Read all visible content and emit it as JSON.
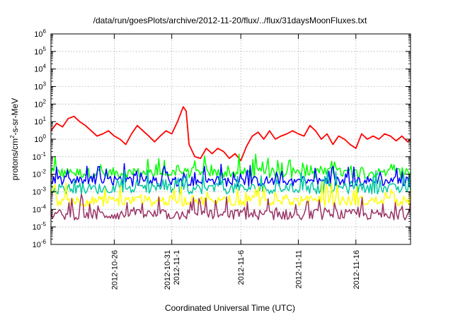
{
  "chart_data": {
    "type": "line",
    "title": "/data/run/goesPlots/archive/2012-11-20/flux/../flux/31daysMoonFluxes.txt",
    "xlabel": "Coordinated Universal Time (UTC)",
    "ylabel": {
      "prefix": "protons/cm",
      "sup": "2",
      "suffix": "-s-sr-MeV"
    },
    "yscale": "log",
    "ylim": [
      1e-06,
      1000000.0
    ],
    "xlim": [
      "2012-10-20T12:00",
      "2012-11-20T18:00"
    ],
    "grid": true,
    "legend": "none",
    "y_ticks": [
      {
        "base": "10",
        "exp": "-6"
      },
      {
        "base": "10",
        "exp": "-5"
      },
      {
        "base": "10",
        "exp": "-4"
      },
      {
        "base": "10",
        "exp": "-3"
      },
      {
        "base": "10",
        "exp": "-2"
      },
      {
        "base": "10",
        "exp": "-1"
      },
      {
        "base": "10",
        "exp": "0"
      },
      {
        "base": "10",
        "exp": "1"
      },
      {
        "base": "10",
        "exp": "2"
      },
      {
        "base": "10",
        "exp": "3"
      },
      {
        "base": "10",
        "exp": "4"
      },
      {
        "base": "10",
        "exp": "5"
      },
      {
        "base": "10",
        "exp": "6"
      }
    ],
    "x_ticks": [
      {
        "date": "2012-10-26",
        "lines": [
          "2012-10-26"
        ]
      },
      {
        "date": "2012-10-31",
        "lines": [
          "2012-10-31",
          "2012-11-1"
        ]
      },
      {
        "date": "2012-11-06",
        "lines": [
          "2012-11-6"
        ]
      },
      {
        "date": "2012-11-11",
        "lines": [
          "2012-11-11"
        ]
      },
      {
        "date": "2012-11-16",
        "lines": [
          "2012-11-16"
        ]
      }
    ],
    "series": [
      {
        "color": "#ff0000",
        "x": [
          "2012-10-20T12:00",
          "2012-10-21T00:00",
          "2012-10-21T12:00",
          "2012-10-22T00:00",
          "2012-10-22T12:00",
          "2012-10-23T00:00",
          "2012-10-23T12:00",
          "2012-10-24T00:00",
          "2012-10-24T12:00",
          "2012-10-25T00:00",
          "2012-10-25T12:00",
          "2012-10-26T00:00",
          "2012-10-26T12:00",
          "2012-10-27T00:00",
          "2012-10-27T12:00",
          "2012-10-28T00:00",
          "2012-10-28T12:00",
          "2012-10-29T00:00",
          "2012-10-29T12:00",
          "2012-10-30T00:00",
          "2012-10-30T12:00",
          "2012-10-31T00:00",
          "2012-10-31T12:00",
          "2012-11-01T00:00",
          "2012-11-01T06:00",
          "2012-11-01T12:00",
          "2012-11-02T00:00",
          "2012-11-02T12:00",
          "2012-11-03T00:00",
          "2012-11-03T12:00",
          "2012-11-04T00:00",
          "2012-11-04T12:00",
          "2012-11-05T00:00",
          "2012-11-05T12:00",
          "2012-11-06T00:00",
          "2012-11-06T12:00",
          "2012-11-07T00:00",
          "2012-11-07T12:00",
          "2012-11-08T00:00",
          "2012-11-08T12:00",
          "2012-11-09T00:00",
          "2012-11-09T12:00",
          "2012-11-10T00:00",
          "2012-11-10T12:00",
          "2012-11-11T00:00",
          "2012-11-11T12:00",
          "2012-11-12T00:00",
          "2012-11-12T12:00",
          "2012-11-13T00:00",
          "2012-11-13T12:00",
          "2012-11-14T00:00",
          "2012-11-14T12:00",
          "2012-11-15T00:00",
          "2012-11-15T12:00",
          "2012-11-16T00:00",
          "2012-11-16T12:00",
          "2012-11-17T00:00",
          "2012-11-17T12:00",
          "2012-11-18T00:00",
          "2012-11-18T12:00",
          "2012-11-19T00:00",
          "2012-11-19T12:00",
          "2012-11-20T00:00",
          "2012-11-20T12:00",
          "2012-11-20T18:00"
        ],
        "values": [
          3,
          8,
          5,
          15,
          20,
          10,
          6,
          3,
          1.5,
          2,
          3,
          1.5,
          1,
          0.5,
          2,
          6,
          3,
          1.5,
          0.7,
          1.5,
          3,
          2,
          10,
          70,
          40,
          0.5,
          0.1,
          0.08,
          0.3,
          0.15,
          0.3,
          0.2,
          0.08,
          0.15,
          0.06,
          0.4,
          1.5,
          2.5,
          1,
          3,
          1,
          1.5,
          2,
          3,
          2,
          1.5,
          6,
          3,
          1,
          2,
          0.5,
          1.5,
          1,
          0.5,
          0.3,
          2,
          1,
          1.5,
          1,
          2,
          1.5,
          0.8,
          1.5,
          0.7,
          1
        ]
      },
      {
        "color": "#00ff00",
        "x": [
          "2012-10-20T12:00",
          "2012-11-20T18:00"
        ],
        "values": [
          0.012,
          0.012
        ]
      },
      {
        "color": "#0000ff",
        "x": [
          "2012-10-20T12:00",
          "2012-11-20T18:00"
        ],
        "values": [
          0.004,
          0.004
        ]
      },
      {
        "color": "#00c8a0",
        "x": [
          "2012-10-20T12:00",
          "2012-11-20T18:00"
        ],
        "values": [
          0.0015,
          0.0015
        ]
      },
      {
        "color": "#ffff00",
        "x": [
          "2012-10-20T12:00",
          "2012-11-20T18:00"
        ],
        "values": [
          0.0003,
          0.0003
        ]
      },
      {
        "color": "#993366",
        "x": [
          "2012-10-20T12:00",
          "2012-11-20T18:00"
        ],
        "values": [
          5e-05,
          5e-05
        ]
      }
    ]
  }
}
